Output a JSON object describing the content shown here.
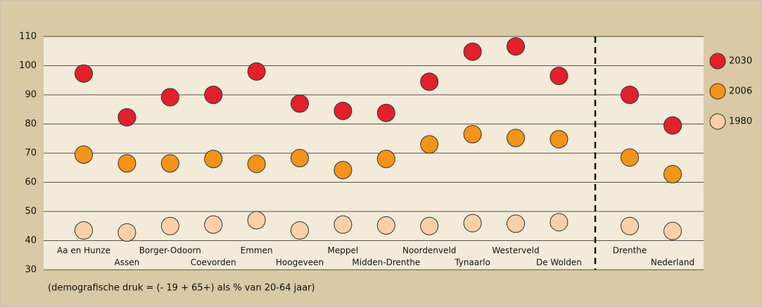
{
  "chart_data": {
    "type": "dot",
    "categories": [
      "Aa en Hunze",
      "Assen",
      "Borger-Odoorn",
      "Coevorden",
      "Emmen",
      "Hoogeveen",
      "Meppel",
      "Midden-Drenthe",
      "Noordenveld",
      "Tynaarlo",
      "Westerveld",
      "De Wolden",
      "Drenthe",
      "Nederland"
    ],
    "series": [
      {
        "name": "2030",
        "color": "#e3202b",
        "values": [
          97.3,
          82.3,
          89.2,
          90,
          98,
          87,
          84.5,
          83.8,
          94.5,
          104.8,
          106.6,
          96.5,
          90,
          79.5
        ]
      },
      {
        "name": "2006",
        "color": "#f39419",
        "values": [
          69.5,
          66.5,
          66.5,
          68,
          66.3,
          68.3,
          64.2,
          68,
          73,
          76.5,
          75.2,
          74.8,
          68.5,
          62.8
        ]
      },
      {
        "name": "1980",
        "color": "#fbd0a8",
        "values": [
          43.5,
          42.8,
          45,
          45.5,
          47,
          43.5,
          45.5,
          45.2,
          45,
          46,
          45.8,
          46.3,
          45,
          43.3
        ]
      }
    ],
    "ylim": [
      30,
      110
    ],
    "yticks": [
      30,
      40,
      50,
      60,
      70,
      80,
      90,
      100,
      110
    ],
    "grid": true,
    "legend": "right",
    "note": "(demografische druk =  (- 19 + 65+) als % van 20-64 jaar)"
  }
}
